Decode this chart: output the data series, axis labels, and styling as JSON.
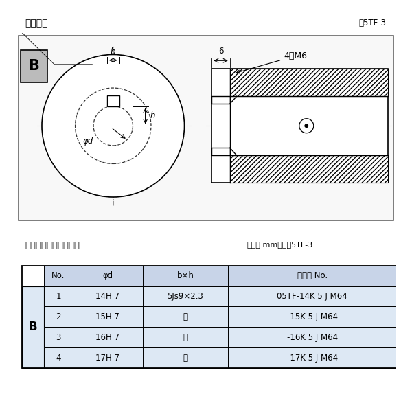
{
  "title_left": "軸穴形状",
  "title_right": "図5TF-3",
  "table_title_left": "軸穴形状コードー覧表",
  "table_title_right": "（単位:mm）　表5TF-3",
  "bg_color": "#ffffff",
  "border_color": "#000000",
  "header_bg": "#c8d4e8",
  "row_bg": "#dde8f4",
  "table_headers": [
    "No.",
    "φd",
    "b×h",
    "コード No."
  ],
  "table_rows": [
    [
      "1",
      "14H 7",
      "5Js9×2.3",
      "05TF-14K 5 J M64"
    ],
    [
      "2",
      "15H 7",
      "〃",
      "-15K 5 J M64"
    ],
    [
      "3",
      "16H 7",
      "〃",
      "-16K 5 J M64"
    ],
    [
      "4",
      "17H 7",
      "〃",
      "-17K 5 J M64"
    ]
  ],
  "dim_b": "b",
  "dim_h": "h",
  "dim_phid": "φd",
  "dim_6": "6",
  "dim_4M6": "4－M6"
}
